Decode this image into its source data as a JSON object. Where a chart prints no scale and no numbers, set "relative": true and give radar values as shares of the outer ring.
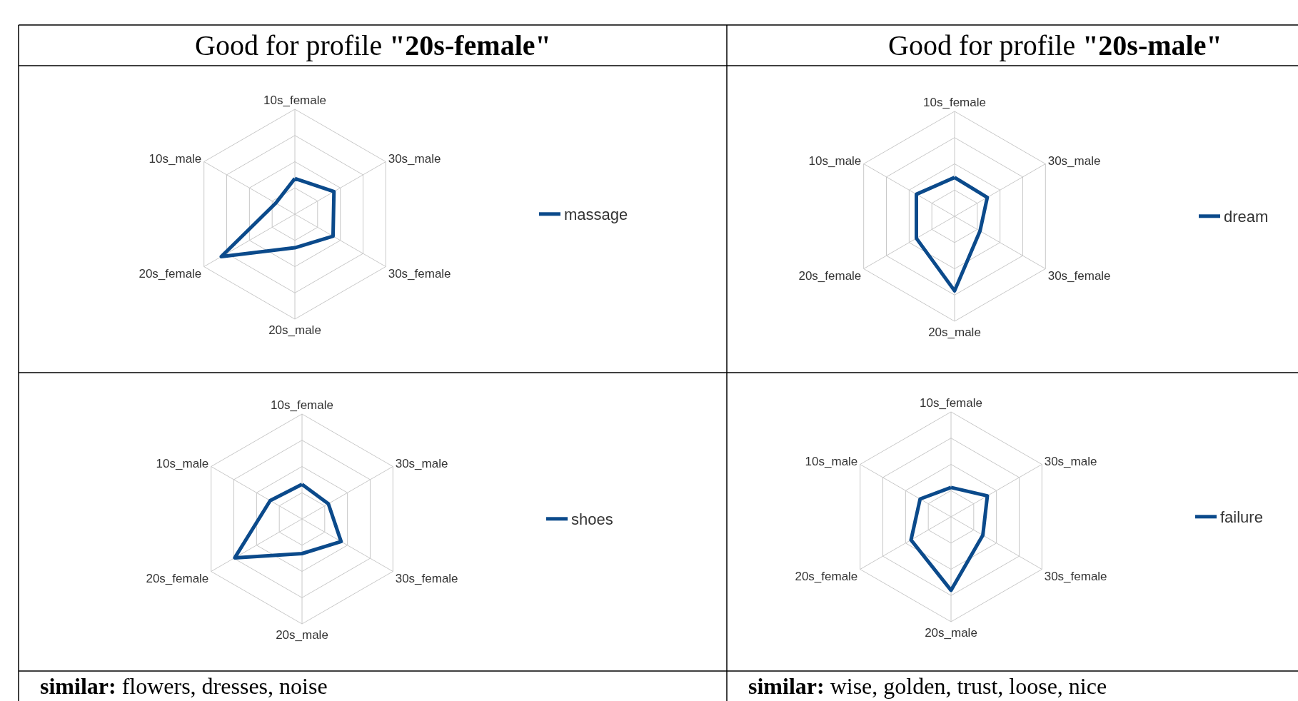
{
  "chart_data": [
    {
      "type": "radar",
      "title": "Good for profile \"20s-female\"",
      "categories": [
        "10s_female",
        "30s_male",
        "30s_female",
        "20s_male",
        "20s_female",
        "10s_male"
      ],
      "relative": true,
      "grid": true,
      "legend": "right",
      "series": [
        {
          "name": "massage",
          "color": "#0b4a8b",
          "values": [
            0.34,
            0.43,
            0.42,
            0.32,
            0.81,
            0.21
          ]
        }
      ]
    },
    {
      "type": "radar",
      "title": "Good for profile \"20s-male\"",
      "categories": [
        "10s_female",
        "30s_male",
        "30s_female",
        "20s_male",
        "20s_female",
        "10s_male"
      ],
      "relative": true,
      "grid": true,
      "legend": "right",
      "series": [
        {
          "name": "dream",
          "color": "#0b4a8b",
          "values": [
            0.37,
            0.36,
            0.28,
            0.71,
            0.42,
            0.42
          ]
        }
      ]
    },
    {
      "type": "radar",
      "categories": [
        "10s_female",
        "30s_male",
        "30s_female",
        "20s_male",
        "20s_female",
        "10s_male"
      ],
      "relative": true,
      "grid": true,
      "legend": "right",
      "annotations": [
        "similar: flowers, dresses, noise"
      ],
      "series": [
        {
          "name": "shoes",
          "color": "#0b4a8b",
          "values": [
            0.33,
            0.29,
            0.43,
            0.33,
            0.74,
            0.35
          ]
        }
      ]
    },
    {
      "type": "radar",
      "categories": [
        "10s_female",
        "30s_male",
        "30s_female",
        "20s_male",
        "20s_female",
        "10s_male"
      ],
      "relative": true,
      "grid": true,
      "legend": "right",
      "annotations": [
        "similar: wise, golden, trust, loose, nice"
      ],
      "series": [
        {
          "name": "failure",
          "color": "#0b4a8b",
          "values": [
            0.28,
            0.4,
            0.35,
            0.7,
            0.44,
            0.34
          ]
        }
      ]
    }
  ]
}
